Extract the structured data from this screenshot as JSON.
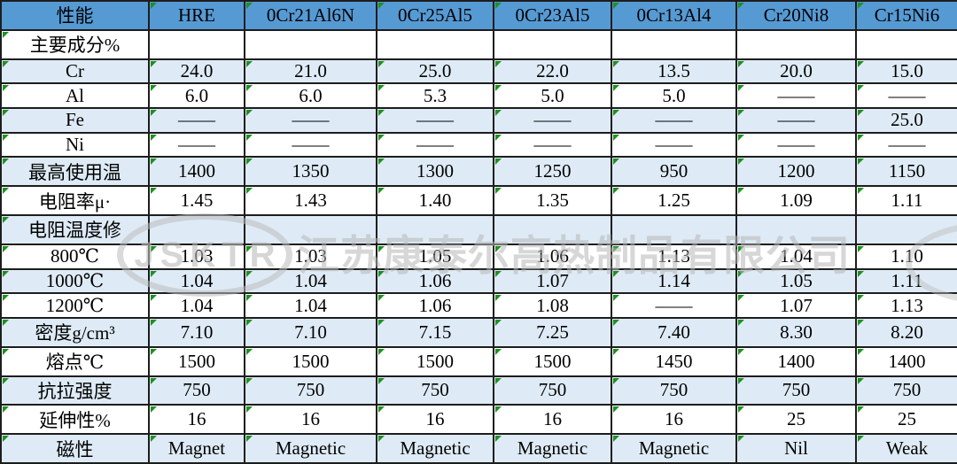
{
  "table": {
    "header": [
      "性能",
      "HRE",
      "0Cr21Al6N",
      "0Cr25Al5",
      "0Cr23Al5",
      "0Cr13Al4",
      "Cr20Ni8",
      "Cr15Ni6"
    ],
    "rows": [
      {
        "label": "主要成分%",
        "values": [
          "",
          "",
          "",
          "",
          "",
          "",
          ""
        ]
      },
      {
        "label": "Cr",
        "values": [
          "24.0",
          "21.0",
          "25.0",
          "22.0",
          "13.5",
          "20.0",
          "15.0"
        ]
      },
      {
        "label": "Al",
        "values": [
          "6.0",
          "6.0",
          "5.3",
          "5.0",
          "5.0",
          "——",
          "——"
        ]
      },
      {
        "label": "Fe",
        "values": [
          "——",
          "——",
          "——",
          "——",
          "——",
          "——",
          "25.0"
        ]
      },
      {
        "label": "Ni",
        "values": [
          "——",
          "——",
          "——",
          "——",
          "——",
          "——",
          "——"
        ]
      },
      {
        "label": "最高使用温",
        "values": [
          "1400",
          "1350",
          "1300",
          "1250",
          "950",
          "1200",
          "1150"
        ]
      },
      {
        "label": "电阻率μ·",
        "values": [
          "1.45",
          "1.43",
          "1.40",
          "1.35",
          "1.25",
          "1.09",
          "1.11"
        ]
      },
      {
        "label": "电阻温度修",
        "values": [
          "",
          "",
          "",
          "",
          "",
          "",
          ""
        ]
      },
      {
        "label": "800℃",
        "values": [
          "1.03",
          "1.03",
          "1.05",
          "1.06",
          "1.13",
          "1.04",
          "1.10"
        ]
      },
      {
        "label": "1000℃",
        "values": [
          "1.04",
          "1.04",
          "1.06",
          "1.07",
          "1.14",
          "1.05",
          "1.11"
        ]
      },
      {
        "label": "1200℃",
        "values": [
          "1.04",
          "1.04",
          "1.06",
          "1.08",
          "——",
          "1.07",
          "1.13"
        ]
      },
      {
        "label": "密度g/cm³",
        "values": [
          "7.10",
          "7.10",
          "7.15",
          "7.25",
          "7.40",
          "8.30",
          "8.20"
        ]
      },
      {
        "label": "熔点℃",
        "values": [
          "1500",
          "1500",
          "1500",
          "1500",
          "1450",
          "1400",
          "1400"
        ]
      },
      {
        "label": "抗拉强度",
        "values": [
          "750",
          "750",
          "750",
          "750",
          "750",
          "750",
          "750"
        ]
      },
      {
        "label": "延伸性%",
        "values": [
          "16",
          "16",
          "16",
          "16",
          "16",
          "25",
          "25"
        ]
      },
      {
        "label": "磁性",
        "values": [
          "Magnet",
          "Magnetic",
          "Magnetic",
          "Magnetic",
          "Magnetic",
          "Nil",
          "Weak"
        ]
      }
    ]
  },
  "watermark": {
    "badge": "JSKTR",
    "company": "江苏康泰尔高热制品有限公司"
  },
  "colors": {
    "header_fill": "#569AD4",
    "alt_row_fill": "#DEEBF6",
    "row_fill": "#FFFFFF",
    "border": "#1D1D1D",
    "error_indicator_green": "#1F9020",
    "watermark_gray": "#BBBBBB",
    "text": "#000000"
  }
}
